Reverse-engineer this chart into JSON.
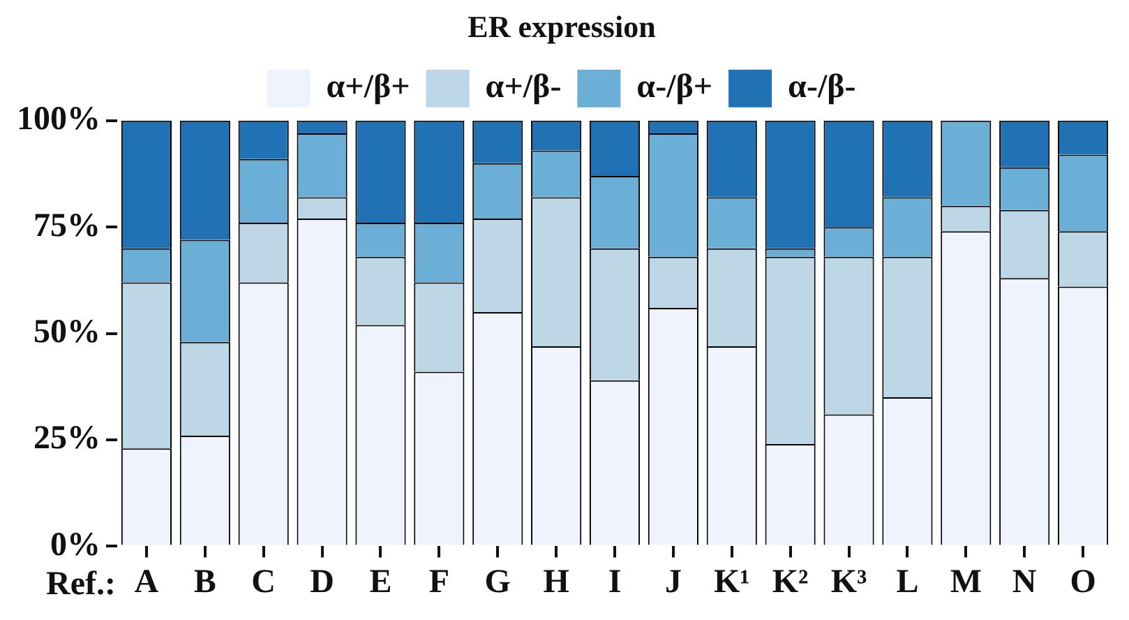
{
  "chart_data": {
    "type": "bar",
    "stacked": true,
    "legend_title": "ER expression",
    "xlabel": "Ref.:",
    "categories": [
      "A",
      "B",
      "C",
      "D",
      "E",
      "F",
      "G",
      "H",
      "I",
      "J",
      "K¹",
      "K²",
      "K³",
      "L",
      "M",
      "N",
      "O"
    ],
    "series": [
      {
        "name": "α+/β+",
        "color": "#eef3fe",
        "values": [
          23,
          26,
          62,
          77,
          52,
          41,
          55,
          47,
          39,
          56,
          47,
          24,
          31,
          35,
          74,
          63,
          61
        ]
      },
      {
        "name": "α+/β-",
        "color": "#bdd7e7",
        "values": [
          39,
          22,
          14,
          5,
          16,
          21,
          22,
          35,
          31,
          12,
          23,
          44,
          37,
          33,
          6,
          16,
          13
        ]
      },
      {
        "name": "α-/β+",
        "color": "#6baed6",
        "values": [
          8,
          24,
          15,
          15,
          8,
          14,
          13,
          11,
          17,
          29,
          12,
          2,
          7,
          14,
          20,
          10,
          18
        ]
      },
      {
        "name": "α-/β-",
        "color": "#2171b5",
        "values": [
          30,
          28,
          9,
          3,
          24,
          24,
          10,
          7,
          13,
          3,
          18,
          30,
          25,
          18,
          0,
          11,
          8
        ]
      }
    ],
    "ylim": [
      0,
      100
    ],
    "yticks": [
      {
        "value": 0,
        "label": "0%"
      },
      {
        "value": 25,
        "label": "25%"
      },
      {
        "value": 50,
        "label": "50%"
      },
      {
        "value": 75,
        "label": "75%"
      },
      {
        "value": 100,
        "label": "100%"
      }
    ],
    "grid": false,
    "legend": "top"
  }
}
